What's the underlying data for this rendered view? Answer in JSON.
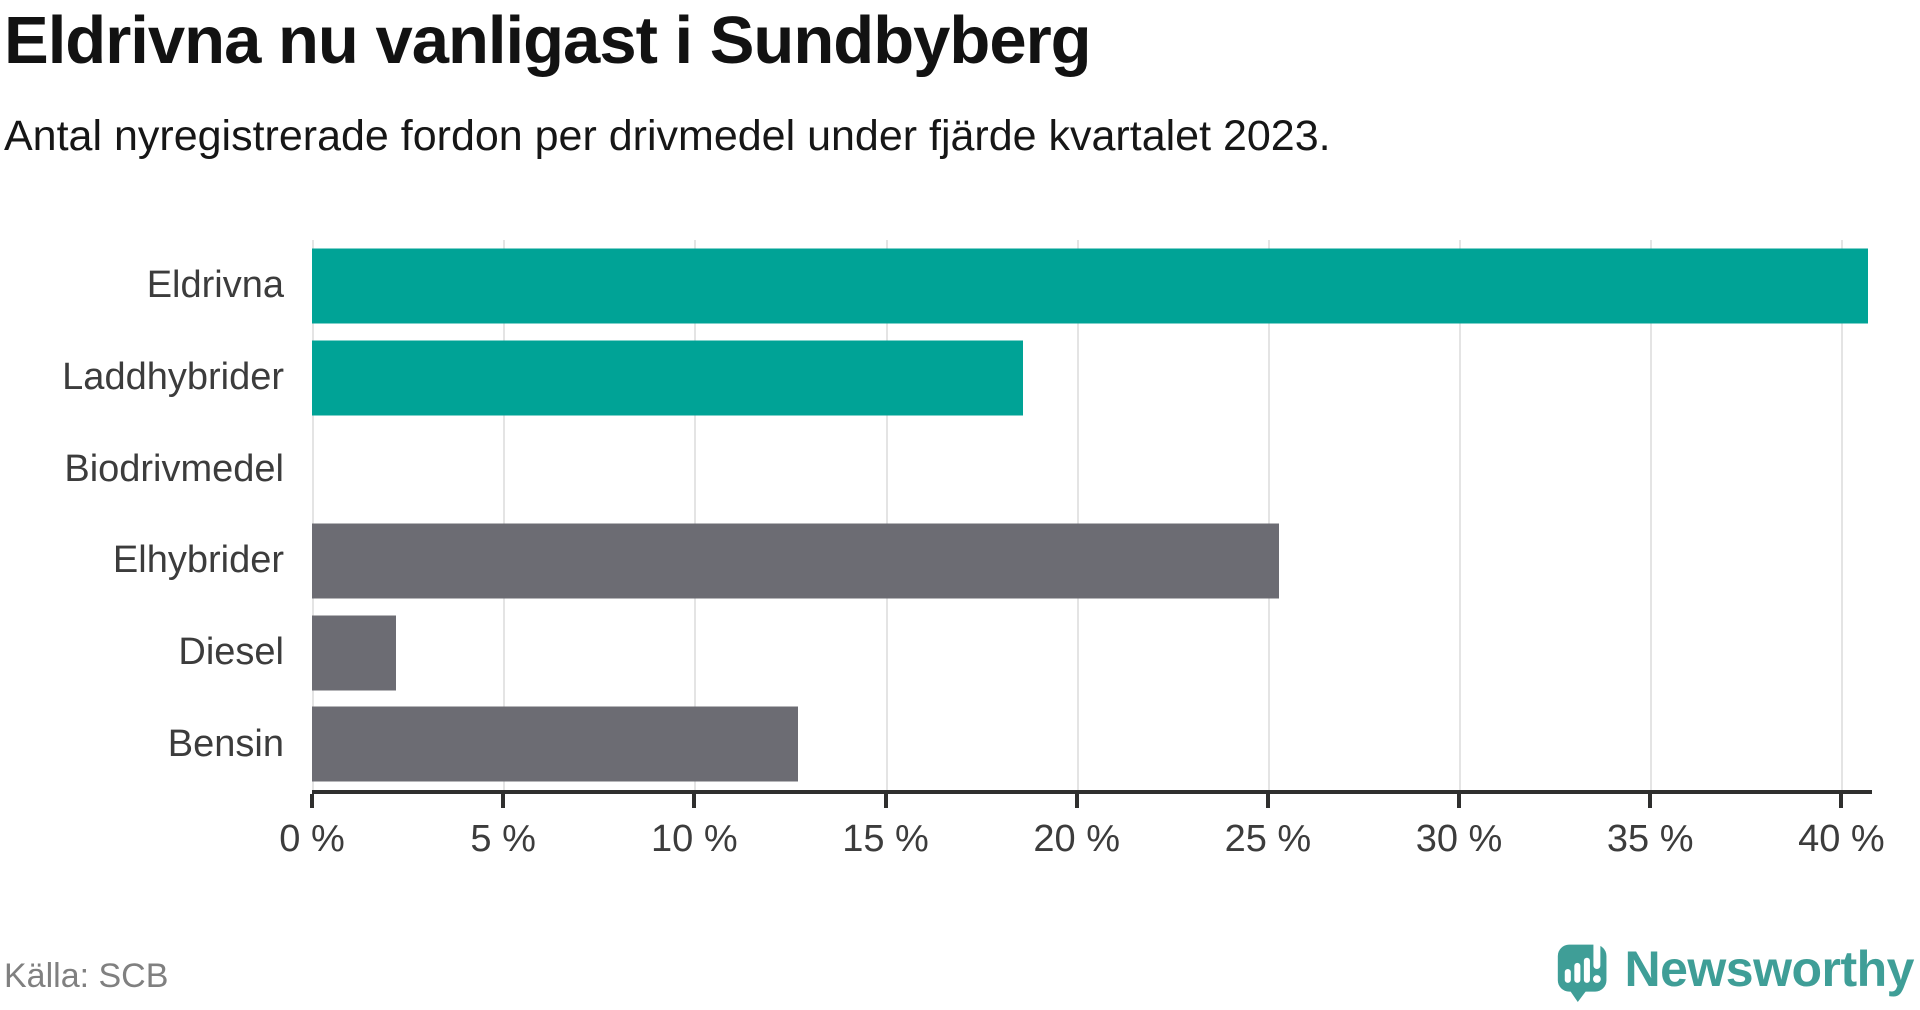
{
  "chart": {
    "title": "Eldrivna nu vanligast i Sundbyberg",
    "subtitle": "Antal nyregistrerade fordon per drivmedel under fjärde kvartalet 2023.",
    "source": "Källa: SCB"
  },
  "branding": {
    "logo_text": "Newsworthy",
    "brand_color": "#3f9e97"
  },
  "chart_data": {
    "type": "bar",
    "orientation": "horizontal",
    "title": "Eldrivna nu vanligast i Sundbyberg",
    "subtitle": "Antal nyregistrerade fordon per drivmedel under fjärde kvartalet 2023.",
    "source": "Källa: SCB",
    "categories": [
      "Eldrivna",
      "Laddhybrider",
      "Biodrivmedel",
      "Elhybrider",
      "Diesel",
      "Bensin"
    ],
    "values": [
      40.7,
      18.6,
      0,
      25.3,
      2.2,
      12.7
    ],
    "unit": "%",
    "bar_colors": [
      "#00a396",
      "#00a396",
      "#00a396",
      "#6c6c73",
      "#6c6c73",
      "#6c6c73"
    ],
    "highlight_color": "#00a396",
    "muted_color": "#6c6c73",
    "xlim": [
      0,
      40.8
    ],
    "xticks": [
      0,
      5,
      10,
      15,
      20,
      25,
      30,
      35,
      40
    ],
    "xtick_labels": [
      "0 %",
      "5 %",
      "10 %",
      "15 %",
      "20 %",
      "25 %",
      "30 %",
      "35 %",
      "40 %"
    ],
    "grid": true,
    "gridline_color": "#e4e4e4",
    "axis_color": "#2f2f2e",
    "legend": "none"
  }
}
